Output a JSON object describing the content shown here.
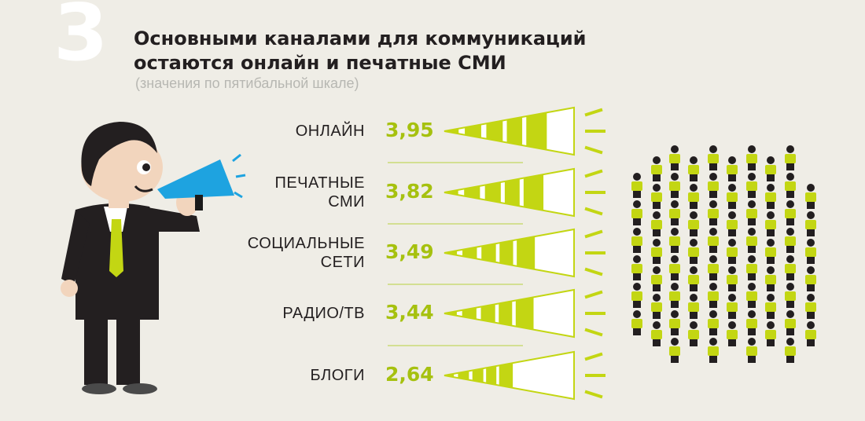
{
  "header": {
    "number": "3",
    "title_line1": "Основными каналами для коммуникаций",
    "title_line2": "остаются онлайн и печатные СМИ",
    "subtitle": "(значения по пятибальной шкале)"
  },
  "colors": {
    "accent": "#c3d613",
    "value": "#a6c10f",
    "background": "#efede6",
    "megaphone": "#1ea3e0",
    "suit": "#231f20",
    "skin": "#f2d5bd"
  },
  "chart_data": {
    "type": "bar",
    "title": "Основными каналами для коммуникаций остаются онлайн и печатные СМИ",
    "subtitle": "(значения по пятибальной шкале)",
    "categories": [
      "ОНЛАЙН",
      "ПЕЧАТНЫЕ СМИ",
      "СОЦИАЛЬНЫЕ СЕТИ",
      "РАДИО/ТВ",
      "БЛОГИ"
    ],
    "category_lines": [
      [
        "ОНЛАЙН"
      ],
      [
        "ПЕЧАТНЫЕ",
        "СМИ"
      ],
      [
        "СОЦИАЛЬНЫЕ",
        "СЕТИ"
      ],
      [
        "РАДИО/ТВ"
      ],
      [
        "БЛОГИ"
      ]
    ],
    "values": [
      3.95,
      3.82,
      3.49,
      3.44,
      2.64
    ],
    "value_labels": [
      "3,95",
      "3,82",
      "3,49",
      "3,44",
      "2,64"
    ],
    "scale_max": 5
  }
}
